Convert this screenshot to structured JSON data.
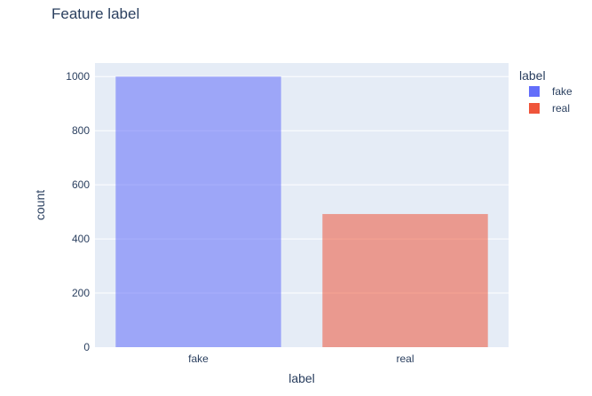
{
  "chart_data": {
    "type": "bar",
    "title": "Feature label",
    "xlabel": "label",
    "ylabel": "count",
    "categories": [
      "fake",
      "real"
    ],
    "series": [
      {
        "name": "fake",
        "category": "fake",
        "value": 1000,
        "color": "#636efa"
      },
      {
        "name": "real",
        "category": "real",
        "value": 492,
        "color": "#ef553b"
      }
    ],
    "ylim": [
      0,
      1050
    ],
    "yticks": [
      0,
      200,
      400,
      600,
      800,
      1000
    ],
    "grid": true,
    "legend": {
      "title": "label",
      "position": "top-right"
    },
    "plot_background": "#e5ecf6"
  }
}
